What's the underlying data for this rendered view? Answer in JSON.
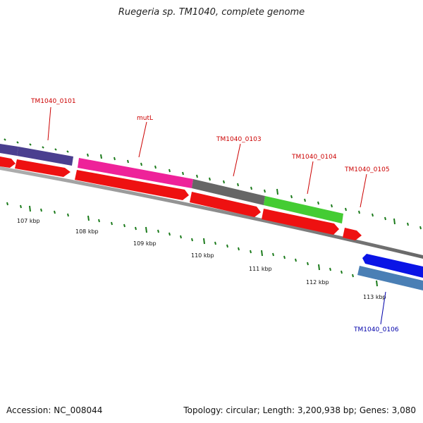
{
  "title": "Ruegeria sp. TM1040, complete genome",
  "accession": "Accession: NC_008044",
  "stats": "Topology: circular; Length: 3,200,938 bp; Genes: 3,080",
  "ticks": {
    "kbp_labels": [
      "107 kbp",
      "108 kbp",
      "109 kbp",
      "110 kbp",
      "111 kbp",
      "112 kbp",
      "113 kbp"
    ]
  },
  "genes": {
    "tm0101": "TM1040_0101",
    "mutl": "mutL",
    "tm0103": "TM1040_0103",
    "tm0104": "TM1040_0104",
    "tm0105": "TM1040_0105",
    "tm0106": "TM1040_0106"
  },
  "colors": {
    "backbone": "#888888",
    "cds": "#ee1111",
    "gene_indigo": "#4a3f8f",
    "gene_pink": "#ee2299",
    "gene_gray": "#666666",
    "gene_green": "#44cc33",
    "gene_blue": "#0a14e6",
    "gene_steel": "#4a7fb5",
    "tick": "#1a7a1a"
  }
}
